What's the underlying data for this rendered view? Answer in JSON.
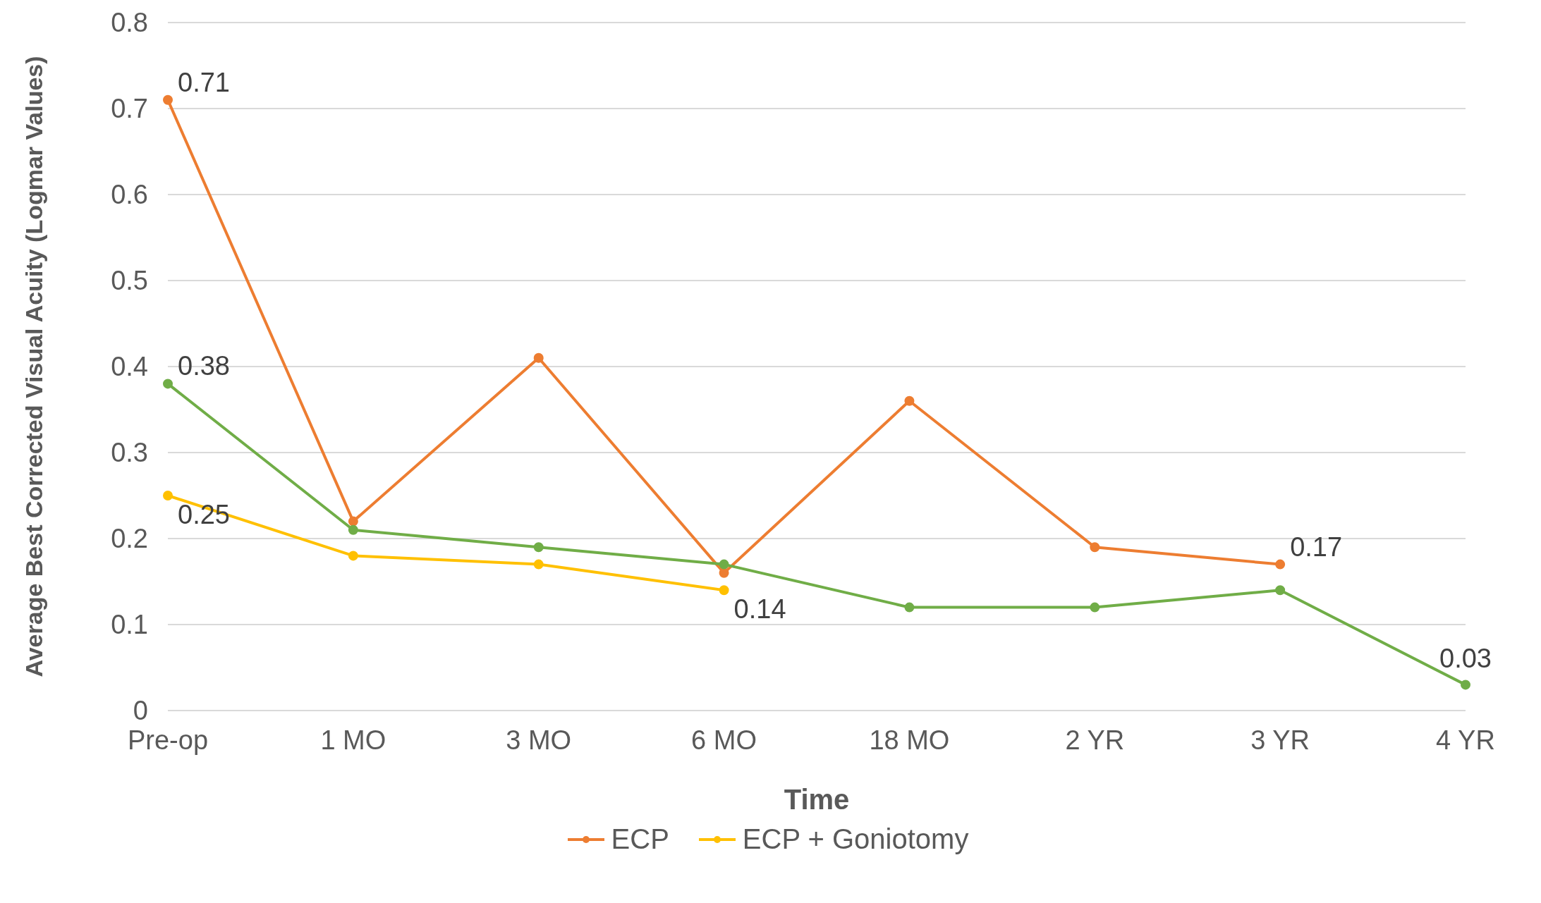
{
  "chart_data": {
    "type": "line",
    "xlabel": "Time",
    "ylabel": "Average Best Corrected Visual Acuity (Logmar Values)",
    "categories": [
      "Pre-op",
      "1 MO",
      "3 MO",
      "6 MO",
      "18 MO",
      "2 YR",
      "3 YR",
      "4 YR"
    ],
    "series": [
      {
        "name": "ECP",
        "color": "#ed7d31",
        "values": [
          0.71,
          0.22,
          0.41,
          0.16,
          0.36,
          0.19,
          0.17,
          null
        ],
        "value_labels": [
          "0.71",
          null,
          null,
          null,
          null,
          null,
          "0.17",
          null
        ]
      },
      {
        "name": "ECP + Goniotomy",
        "color": "#ffc000",
        "values": [
          0.25,
          0.18,
          0.17,
          0.14,
          null,
          null,
          null,
          null
        ],
        "value_labels": [
          "0.25",
          null,
          null,
          "0.14",
          null,
          null,
          null,
          null
        ]
      },
      {
        "color": "#70ad47",
        "values": [
          0.38,
          0.21,
          0.19,
          0.17,
          0.12,
          0.12,
          0.14,
          0.03
        ],
        "value_labels": [
          "0.38",
          null,
          null,
          null,
          null,
          null,
          null,
          "0.03"
        ]
      }
    ],
    "ylim": [
      0,
      0.8
    ],
    "yticks": [
      0,
      0.1,
      0.2,
      0.3,
      0.4,
      0.5,
      0.6,
      0.7,
      0.8
    ],
    "grid": "y",
    "legend": "bottom",
    "marker": "circle",
    "line_style": "solid"
  }
}
